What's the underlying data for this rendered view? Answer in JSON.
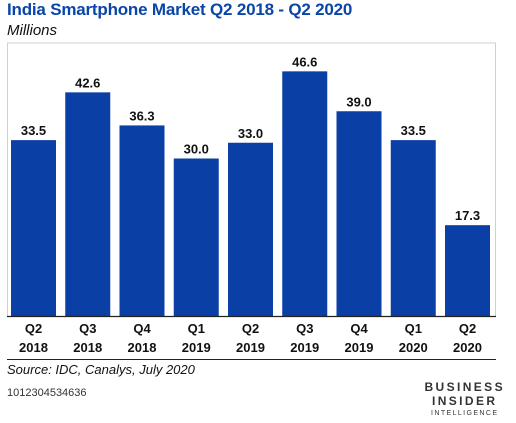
{
  "header": {
    "title": "India Smartphone Market Q2 2018 - Q2 2020",
    "subtitle": "Millions"
  },
  "footer": {
    "source": "Source: IDC, Canalys, July 2020",
    "code": "1012304534636"
  },
  "logo": {
    "line1": "BUSINESS",
    "line2": "INSIDER",
    "line3": "INTELLIGENCE"
  },
  "colors": {
    "bar": "#0a3fa6",
    "title": "#0a45a8"
  },
  "chart_data": {
    "type": "bar",
    "title": "India Smartphone Market Q2 2018 - Q2 2020",
    "subtitle": "Millions",
    "categories": [
      [
        "Q2",
        "2018"
      ],
      [
        "Q3",
        "2018"
      ],
      [
        "Q4",
        "2018"
      ],
      [
        "Q1",
        "2019"
      ],
      [
        "Q2",
        "2019"
      ],
      [
        "Q3",
        "2019"
      ],
      [
        "Q4",
        "2019"
      ],
      [
        "Q1",
        "2020"
      ],
      [
        "Q2",
        "2020"
      ]
    ],
    "values": [
      33.5,
      42.6,
      36.3,
      30.0,
      33.0,
      46.6,
      39.0,
      33.5,
      17.3
    ],
    "value_labels": [
      "33.5",
      "42.6",
      "36.3",
      "30.0",
      "33.0",
      "46.6",
      "39.0",
      "33.5",
      "17.3"
    ],
    "ylim": [
      0,
      52
    ],
    "grid": false,
    "legend": "none"
  }
}
